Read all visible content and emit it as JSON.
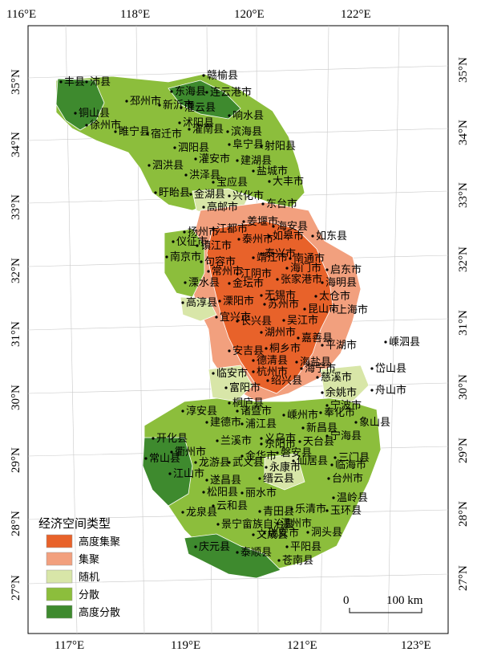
{
  "map": {
    "top_lon_labels": [
      "116°E",
      "118°E",
      "120°E",
      "122°E"
    ],
    "bottom_lon_labels": [
      "117°E",
      "119°E",
      "121°E",
      "123°E"
    ],
    "left_lat_labels": [
      "35°N",
      "34°N",
      "33°N",
      "32°N",
      "31°N",
      "30°N",
      "29°N",
      "28°N",
      "27°N"
    ],
    "right_lat_labels": [
      "35°N",
      "34°N",
      "33°N",
      "32°N",
      "31°N",
      "30°N",
      "29°N",
      "28°N",
      "27°N"
    ],
    "scale_zero": "0",
    "scale_label": "100 km"
  },
  "legend": {
    "title": "经济空间类型",
    "items": [
      {
        "label": "高度集聚",
        "color": "#e8622a"
      },
      {
        "label": "集聚",
        "color": "#f2a07e"
      },
      {
        "label": "随机",
        "color": "#d8e6a8"
      },
      {
        "label": "分散",
        "color": "#8cbe3c"
      },
      {
        "label": "高度分散",
        "color": "#3e8a2e"
      }
    ]
  },
  "places": [
    "赣榆县",
    "丰县",
    "沛县",
    "东海县",
    "连云港市",
    "邳州市",
    "新沂市",
    "灌云县",
    "铜山县",
    "徐州市",
    "沭阳县",
    "响水县",
    "睢宁县",
    "宿迁市",
    "灌南县",
    "滨海县",
    "泗阳县",
    "阜宁县",
    "射阳县",
    "灌安市",
    "建湖县",
    "泗洪县",
    "洪泽县",
    "盐城市",
    "宝应县",
    "大丰市",
    "盱眙县",
    "金湖县",
    "兴化市",
    "东台市",
    "高邮市",
    "姜堰市",
    "海安县",
    "扬州市",
    "江都市",
    "泰州市",
    "如皋市",
    "如东县",
    "仪征市",
    "镇江市",
    "泰兴市",
    "南京市",
    "句容市",
    "靖江市",
    "南通市",
    "启东市",
    "常州市",
    "江阴市",
    "海门市",
    "溧水县",
    "金坛市",
    "张家港市",
    "海明县",
    "高淳县",
    "溧阳市",
    "无锡市",
    "太仓市",
    "宜兴市",
    "苏州市",
    "昆山市",
    "上海市",
    "长兴县",
    "吴江市",
    "湖州市",
    "嘉善县",
    "安吉县",
    "德清县",
    "桐乡市",
    "平湖市",
    "海盐县",
    "嵊泗县",
    "临安市",
    "杭州市",
    "海宁市",
    "岱山县",
    "富阳市",
    "绍兴县",
    "慈溪市",
    "余姚市",
    "舟山市",
    "桐庐县",
    "宁波市",
    "淳安县",
    "建德市",
    "诸暨市",
    "浦江县",
    "嵊州市",
    "奉化市",
    "新昌县",
    "象山县",
    "开化县",
    "义乌市",
    "兰溪市",
    "东阳市",
    "天台县",
    "宁海县",
    "常山县",
    "衢州市",
    "金华市",
    "磐安县",
    "三门县",
    "江山市",
    "龙游县",
    "武义县",
    "永康市",
    "仙居县",
    "临海市",
    "遂昌县",
    "缙云县",
    "台州市",
    "松阳县",
    "丽水市",
    "温岭县",
    "龙泉县",
    "云和县",
    "青田县",
    "乐清市",
    "玉环县",
    "景宁畲族自治县",
    "温州市",
    "洞头县",
    "庆元县",
    "文成县",
    "瑞安市",
    "泰顺县",
    "平阳县",
    "苍南县"
  ]
}
